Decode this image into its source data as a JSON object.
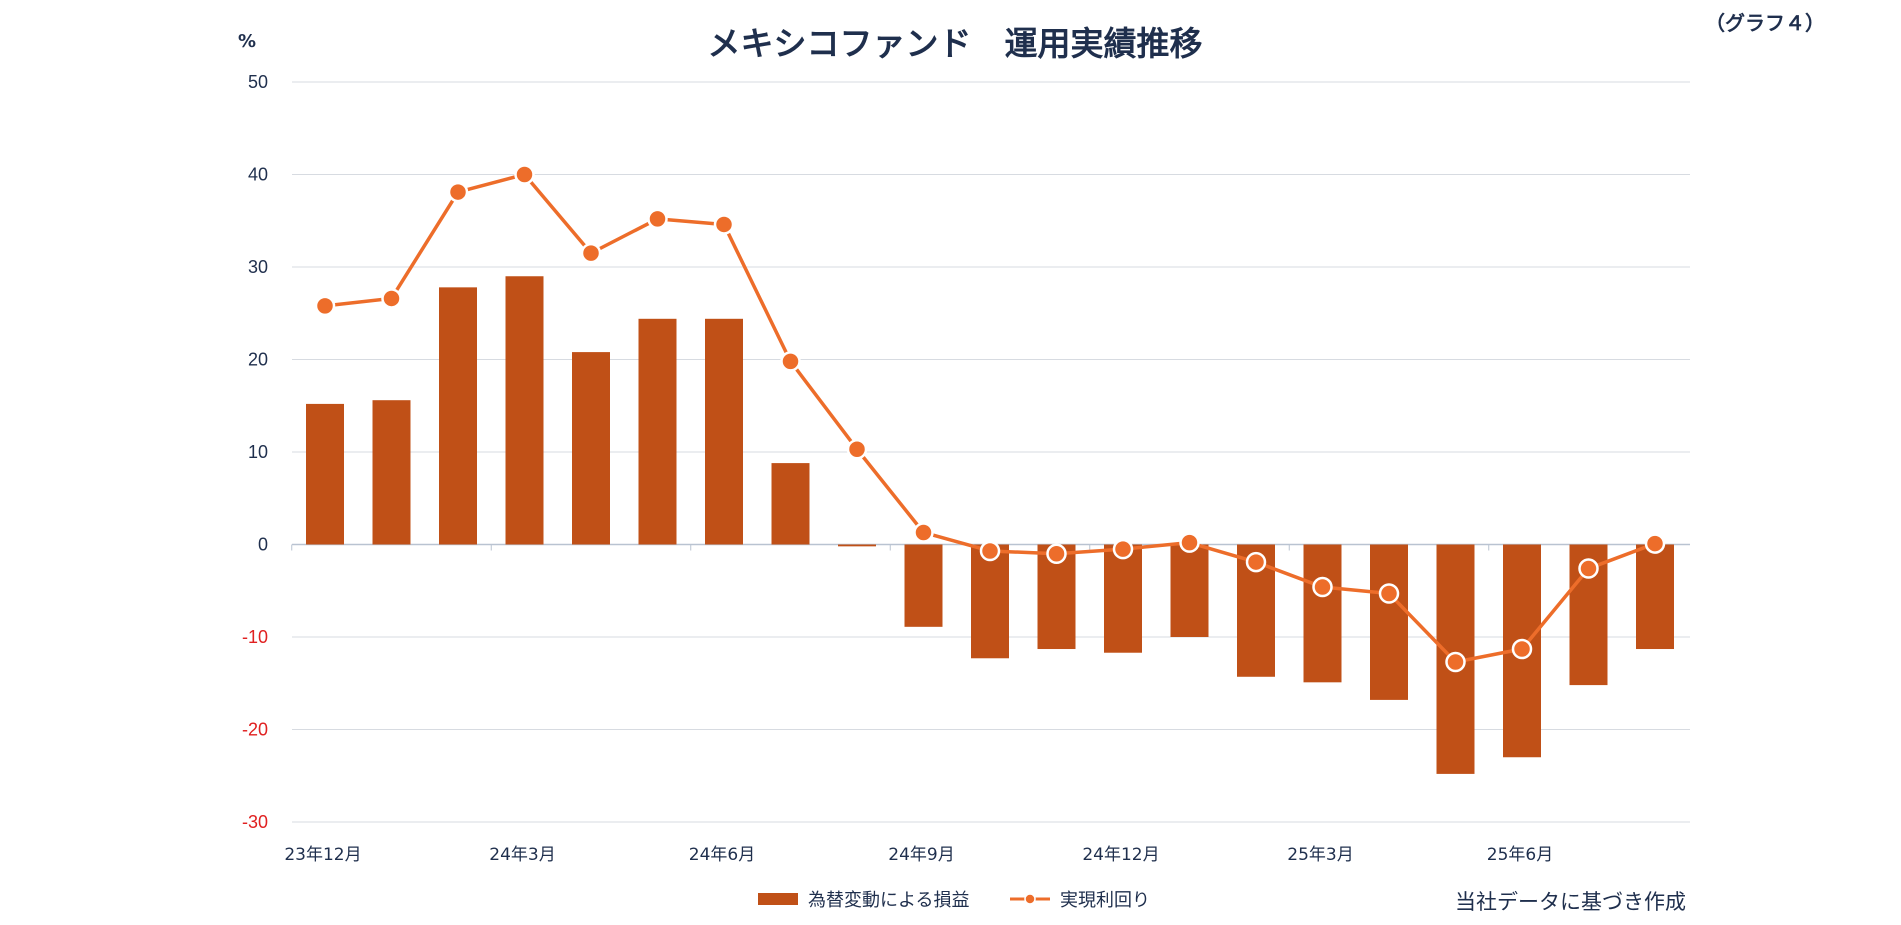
{
  "chart_data": {
    "type": "bar",
    "title": "メキシコファンド　運用実績推移",
    "graph_label": "（グラフ４）",
    "ylabel": "%",
    "ylim": [
      -30,
      50
    ],
    "yticks": [
      50,
      40,
      30,
      20,
      10,
      0,
      -10,
      -20,
      -30
    ],
    "negative_tick_color": "#e02020",
    "positive_tick_color": "#1f2f4d",
    "grid": true,
    "categories": [
      "23年12月",
      "24年1月",
      "24年2月",
      "24年3月",
      "24年4月",
      "24年5月",
      "24年6月",
      "24年7月",
      "24年8月",
      "24年9月",
      "24年10月",
      "24年11月",
      "24年12月",
      "25年1月",
      "25年2月",
      "25年3月",
      "25年4月",
      "25年5月",
      "25年6月",
      "25年7月",
      "25年8月"
    ],
    "x_tick_labels": [
      {
        "index": 0,
        "label": "23年12月"
      },
      {
        "index": 3,
        "label": "24年3月"
      },
      {
        "index": 6,
        "label": "24年6月"
      },
      {
        "index": 9,
        "label": "24年9月"
      },
      {
        "index": 12,
        "label": "24年12月"
      },
      {
        "index": 15,
        "label": "25年3月"
      },
      {
        "index": 18,
        "label": "25年6月"
      }
    ],
    "series": [
      {
        "name": "為替変動による損益",
        "type": "bar",
        "color": "#c05017",
        "values": [
          15.2,
          15.6,
          27.8,
          29.0,
          20.8,
          24.4,
          24.4,
          8.8,
          -0.2,
          -8.9,
          -12.3,
          -11.3,
          -11.7,
          -10.0,
          -14.3,
          -14.9,
          -16.8,
          -24.8,
          -23.0,
          -15.2,
          -11.3
        ]
      },
      {
        "name": "実現利回り",
        "type": "line",
        "color": "#ed6d2a",
        "values": [
          25.8,
          26.6,
          38.1,
          40.0,
          31.5,
          35.2,
          34.6,
          19.8,
          10.3,
          1.3,
          -0.7,
          -1.0,
          -0.5,
          0.2,
          -1.9,
          -4.6,
          -5.3,
          -12.7,
          -11.3,
          -2.6,
          0.1
        ]
      }
    ],
    "legend_position": "bottom-center"
  },
  "source_note": "当社データに基づき作成"
}
